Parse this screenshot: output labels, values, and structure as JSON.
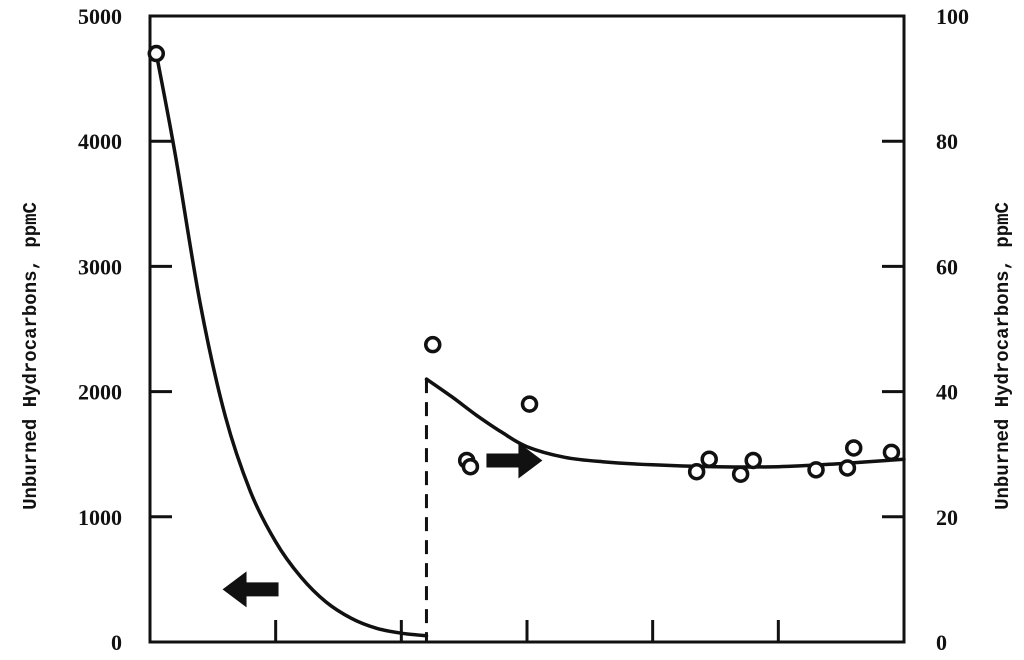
{
  "chart_data": {
    "type": "scatter",
    "title": "",
    "xlabel": "",
    "x_ticks_count": 6,
    "left_axis": {
      "label": "Unburned Hydrocarbons, ppmC",
      "ylim": [
        0,
        5000
      ],
      "ticks": [
        "0",
        "1000",
        "2000",
        "3000",
        "4000",
        "5000"
      ]
    },
    "right_axis": {
      "label": "Unburned Hydrocarbons, ppmC",
      "ylim": [
        0,
        100
      ],
      "ticks": [
        "0",
        "20",
        "40",
        "60",
        "80",
        "100"
      ]
    },
    "series": [
      {
        "axis": "left",
        "points": [
          {
            "x": 0.05,
            "y": 4700
          }
        ],
        "curve": [
          [
            0.05,
            4700
          ],
          [
            0.2,
            3900
          ],
          [
            0.4,
            2700
          ],
          [
            0.6,
            1800
          ],
          [
            0.8,
            1200
          ],
          [
            1.0,
            800
          ],
          [
            1.2,
            520
          ],
          [
            1.4,
            320
          ],
          [
            1.6,
            190
          ],
          [
            1.8,
            110
          ],
          [
            2.0,
            70
          ],
          [
            2.2,
            50
          ]
        ]
      },
      {
        "axis": "right",
        "points": [
          {
            "x": 2.25,
            "y": 47.5
          },
          {
            "x": 2.52,
            "y": 29.0
          },
          {
            "x": 2.55,
            "y": 28.0
          },
          {
            "x": 3.02,
            "y": 38.0
          },
          {
            "x": 4.35,
            "y": 27.2
          },
          {
            "x": 4.45,
            "y": 29.2
          },
          {
            "x": 4.7,
            "y": 26.8
          },
          {
            "x": 4.8,
            "y": 29.0
          },
          {
            "x": 5.3,
            "y": 27.5
          },
          {
            "x": 5.55,
            "y": 27.8
          },
          {
            "x": 5.6,
            "y": 31.0
          },
          {
            "x": 5.9,
            "y": 30.3
          }
        ],
        "curve": [
          [
            2.2,
            42.0
          ],
          [
            2.4,
            39.2
          ],
          [
            2.6,
            36.2
          ],
          [
            2.8,
            33.5
          ],
          [
            3.0,
            31.2
          ],
          [
            3.3,
            29.5
          ],
          [
            3.6,
            28.8
          ],
          [
            4.0,
            28.3
          ],
          [
            4.5,
            28.0
          ],
          [
            5.0,
            28.0
          ],
          [
            5.5,
            28.5
          ],
          [
            6.0,
            29.2
          ]
        ]
      }
    ],
    "divider_x": 2.2,
    "arrows": [
      {
        "direction": "left",
        "x": 0.8,
        "y_left": 420
      },
      {
        "direction": "right",
        "x": 2.9,
        "y_left": 1450
      }
    ]
  }
}
